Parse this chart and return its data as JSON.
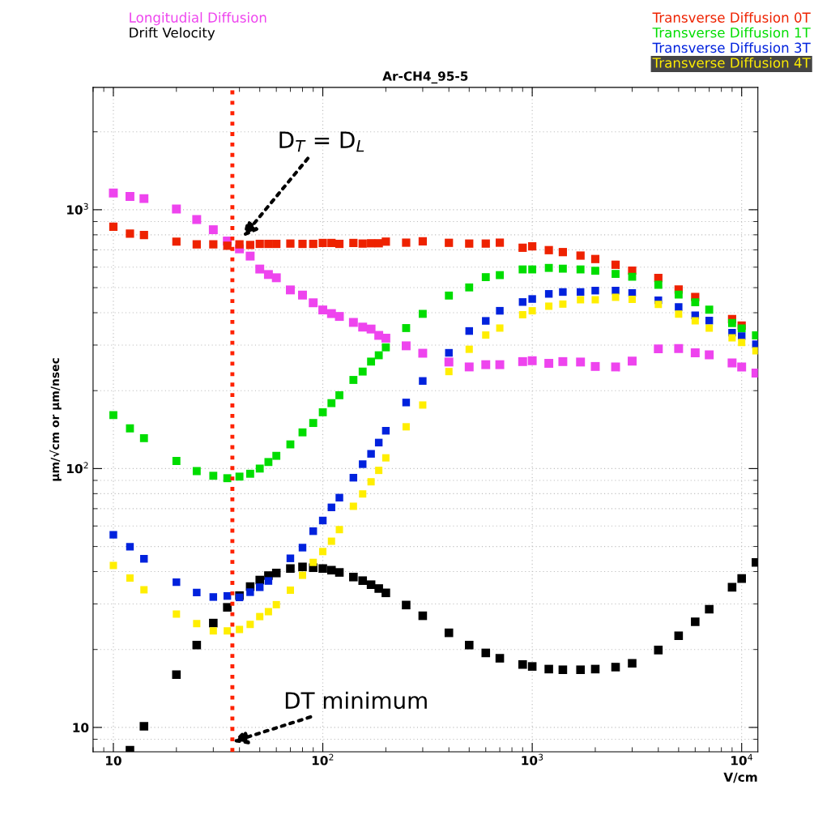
{
  "chart_data": {
    "type": "scatter",
    "title": "Ar-CH4_95-5",
    "xlabel": "V/cm",
    "ylabel": "μm/√cm or μm/nsec",
    "log": "xy",
    "grid": true,
    "legend": "top",
    "marker": "square",
    "xlim": [
      8.0,
      11950
    ],
    "ylim": [
      8.05,
      2970
    ],
    "xticks": [
      10,
      {
        "value": 100,
        "label": "10$^{2}$"
      },
      {
        "value": 1000,
        "label": "10$^{3}$"
      },
      {
        "value": 10000,
        "label": "10$^{4}$"
      }
    ],
    "yticks": [
      10,
      {
        "value": 100,
        "label": "10$^{2}$"
      },
      {
        "value": 1000,
        "label": "10$^{3}$"
      }
    ],
    "x": [
      10,
      12,
      14,
      20,
      25,
      30,
      35,
      40,
      45,
      50,
      55,
      60,
      70,
      80,
      90,
      100,
      110,
      120,
      140,
      155,
      170,
      185,
      200,
      250,
      300,
      400,
      500,
      600,
      700,
      900,
      1000,
      1200,
      1400,
      1700,
      2000,
      2500,
      3000,
      4000,
      5000,
      6000,
      7000,
      9000,
      10000,
      11700
    ],
    "series": [
      {
        "name": "Longitudial Diffusion",
        "color": "#ee44ee",
        "values": [
          1161,
          1125,
          1104,
          1007,
          917,
          837,
          757,
          706,
          662,
          590,
          562,
          546,
          490,
          468,
          437,
          410,
          397,
          387,
          367,
          352,
          346,
          327,
          319,
          298,
          279,
          258,
          247,
          252,
          252,
          259,
          261,
          255,
          259,
          258,
          248,
          247,
          260,
          290,
          291,
          280,
          275,
          256,
          247,
          234
        ]
      },
      {
        "name": "Drift Velocity",
        "color": "#000000",
        "values": [
          null,
          8.17,
          10.1,
          16.0,
          20.8,
          25.3,
          29.1,
          32.3,
          35.0,
          37.1,
          38.6,
          39.5,
          41.1,
          41.7,
          41.4,
          41.1,
          40.5,
          39.7,
          38.1,
          36.9,
          35.6,
          34.4,
          33.1,
          29.7,
          27.0,
          23.2,
          20.8,
          19.4,
          18.5,
          17.5,
          17.2,
          16.8,
          16.7,
          16.7,
          16.8,
          17.1,
          17.7,
          19.9,
          22.6,
          25.6,
          28.6,
          34.8,
          37.6,
          43.4
        ]
      },
      {
        "name": "Transverse Diffusion 0T",
        "color": "#ee2200",
        "values": [
          859,
          809,
          798,
          753,
          735,
          735,
          726,
          735,
          731,
          738,
          738,
          738,
          740,
          738,
          738,
          744,
          744,
          738,
          744,
          740,
          742,
          742,
          753,
          746,
          755,
          745,
          740,
          740,
          746,
          713,
          722,
          698,
          686,
          665,
          645,
          613,
          582,
          545,
          492,
          460,
          null,
          378,
          357,
          null
        ]
      },
      {
        "name": "Transverse Diffusion 1T",
        "color": "#00dd00",
        "values": [
          161,
          143,
          131,
          107,
          97.8,
          93.8,
          91.8,
          93.1,
          95.5,
          100,
          106,
          112,
          124,
          138,
          150,
          165,
          179,
          192,
          220,
          237,
          259,
          274,
          294,
          349,
          396,
          466,
          501,
          549,
          559,
          588,
          588,
          596,
          592,
          588,
          581,
          565,
          551,
          513,
          470,
          439,
          411,
          365,
          348,
          327
        ]
      },
      {
        "name": "Transverse Diffusion 3T",
        "color": "#0022dd",
        "values": [
          55.5,
          49.9,
          44.8,
          36.4,
          33.2,
          31.9,
          32.2,
          31.8,
          33.3,
          34.8,
          36.8,
          null,
          45.0,
          49.5,
          57.3,
          63.0,
          70.8,
          77.2,
          92.2,
          104,
          114,
          126,
          140,
          180,
          218,
          280,
          340,
          372,
          407,
          440,
          452,
          473,
          481,
          481,
          487,
          487,
          477,
          447,
          421,
          391,
          373,
          335,
          325,
          302
        ]
      },
      {
        "name": "Transverse Diffusion 4T",
        "color": "#ffee00",
        "values": [
          42.2,
          37.8,
          34.0,
          27.4,
          25.2,
          23.6,
          23.6,
          23.9,
          25.0,
          26.8,
          28.0,
          29.8,
          33.9,
          38.7,
          43.4,
          47.8,
          52.4,
          58.1,
          71.5,
          79.8,
          88.9,
          98.4,
          110,
          145,
          176,
          237,
          289,
          328,
          349,
          393,
          407,
          424,
          432,
          449,
          449,
          459,
          451,
          431,
          395,
          372,
          349,
          320,
          307,
          285
        ]
      }
    ],
    "ref_lines": [
      {
        "axis": "x",
        "value": 37,
        "color": "#ff2200",
        "line_style": "dotted"
      }
    ],
    "annotations": [
      {
        "text": "D$_{T}$ = D$_{L}$",
        "x": 41.5,
        "y": 784
      },
      "DT minimum"
    ]
  }
}
